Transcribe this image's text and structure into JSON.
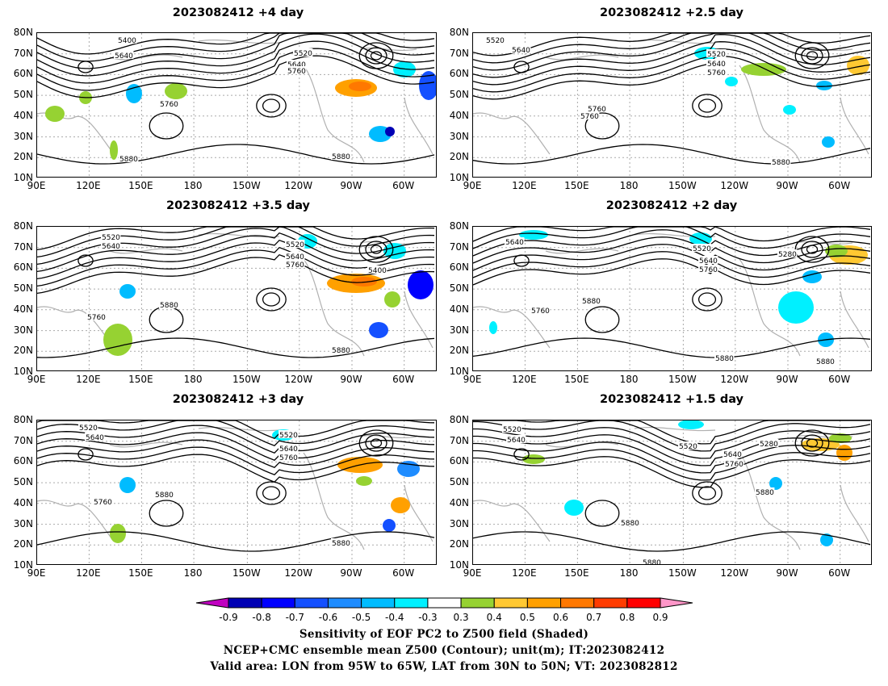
{
  "panels": [
    {
      "title": "2023082412 +4 day"
    },
    {
      "title": "2023082412 +2.5 day"
    },
    {
      "title": "2023082412 +3.5 day"
    },
    {
      "title": "2023082412 +2 day"
    },
    {
      "title": "2023082412 +3 day"
    },
    {
      "title": "2023082412 +1.5 day"
    }
  ],
  "axes": {
    "lat_ticks": [
      "80N",
      "70N",
      "60N",
      "50N",
      "40N",
      "30N",
      "20N",
      "10N"
    ],
    "lon_ticks": [
      "90E",
      "120E",
      "150E",
      "180",
      "150W",
      "120W",
      "90W",
      "60W"
    ]
  },
  "contour_labels": [
    "5400",
    "5280",
    "5520",
    "5640",
    "5760",
    "5880"
  ],
  "colorbar": {
    "ticks": [
      "-0.9",
      "-0.8",
      "-0.7",
      "-0.6",
      "-0.5",
      "-0.4",
      "-0.3",
      "0.3",
      "0.4",
      "0.5",
      "0.6",
      "0.7",
      "0.8",
      "0.9"
    ],
    "colors": [
      "#c000c0",
      "#0000b4",
      "#0000ff",
      "#1450ff",
      "#1e8cff",
      "#00bcff",
      "#00f0ff",
      "#ffffff",
      "#96d232",
      "#ffc832",
      "#ffa000",
      "#ff7800",
      "#ff3c00",
      "#ff0000",
      "#ff96c8"
    ]
  },
  "caption": {
    "line1": "Sensitivity of EOF PC2 to Z500 field (Shaded)",
    "line2": "NCEP+CMC ensemble mean Z500 (Contour); unit(m); IT:2023082412",
    "line3": "Valid area: LON from 95W to 65W, LAT from 30N to 50N; VT: 2023082812"
  }
}
